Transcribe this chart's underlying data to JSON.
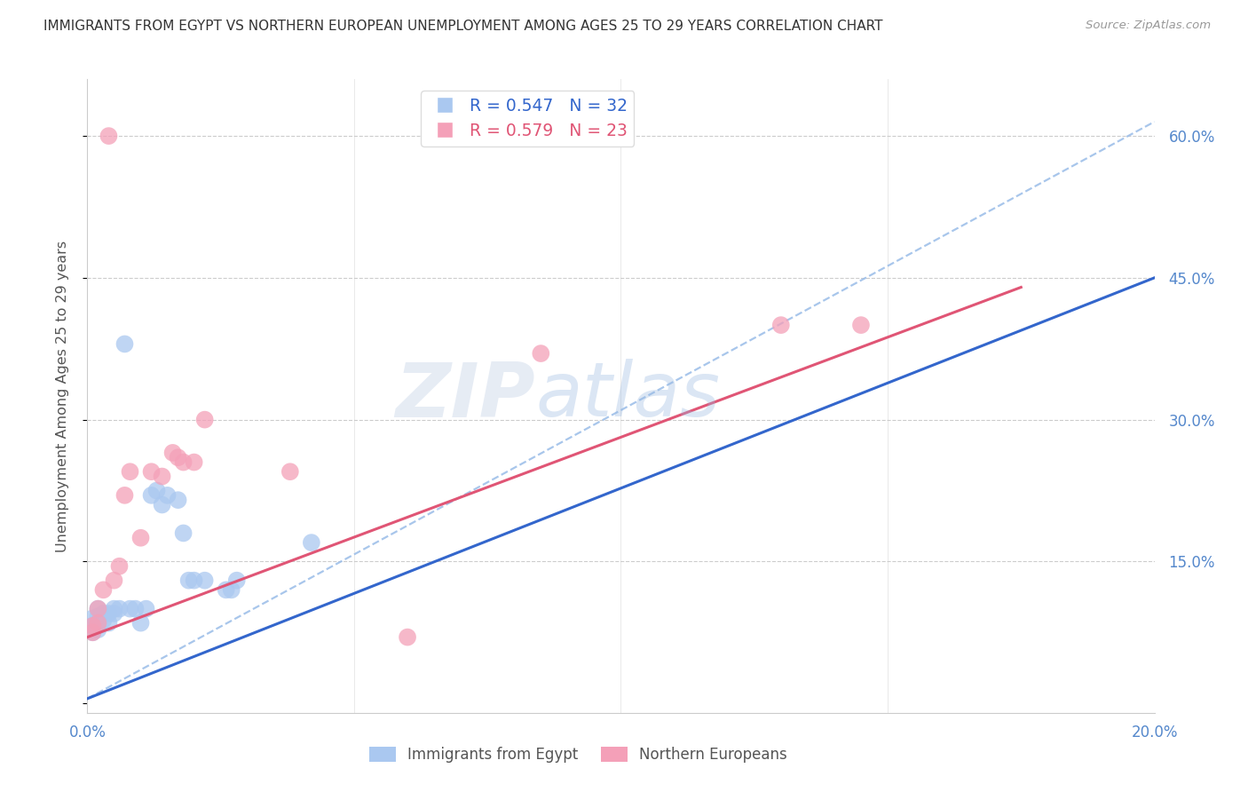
{
  "title": "IMMIGRANTS FROM EGYPT VS NORTHERN EUROPEAN UNEMPLOYMENT AMONG AGES 25 TO 29 YEARS CORRELATION CHART",
  "source": "Source: ZipAtlas.com",
  "ylabel": "Unemployment Among Ages 25 to 29 years",
  "xlim": [
    0.0,
    0.2
  ],
  "ylim": [
    -0.01,
    0.66
  ],
  "yticks_right": [
    0.0,
    0.15,
    0.3,
    0.45,
    0.6
  ],
  "ytick_labels_right": [
    "",
    "15.0%",
    "30.0%",
    "45.0%",
    "60.0%"
  ],
  "xticks": [
    0.0,
    0.025,
    0.05,
    0.075,
    0.1,
    0.125,
    0.15,
    0.175,
    0.2
  ],
  "xtick_labels": [
    "0.0%",
    "",
    "",
    "",
    "",
    "",
    "",
    "",
    "20.0%"
  ],
  "legend1_label": "R = 0.547   N = 32",
  "legend2_label": "R = 0.579   N = 23",
  "legend_bottom_label1": "Immigrants from Egypt",
  "legend_bottom_label2": "Northern Europeans",
  "blue_scatter_color": "#aac8f0",
  "pink_scatter_color": "#f4a0b8",
  "blue_line_color": "#3366cc",
  "pink_line_color": "#e05575",
  "dashed_line_color": "#99bce8",
  "tick_color": "#5588cc",
  "scatter_blue_x": [
    0.001,
    0.001,
    0.001,
    0.002,
    0.002,
    0.002,
    0.002,
    0.003,
    0.003,
    0.004,
    0.004,
    0.005,
    0.005,
    0.006,
    0.007,
    0.008,
    0.009,
    0.01,
    0.011,
    0.012,
    0.013,
    0.014,
    0.015,
    0.017,
    0.018,
    0.019,
    0.02,
    0.022,
    0.026,
    0.027,
    0.028,
    0.042
  ],
  "scatter_blue_y": [
    0.075,
    0.082,
    0.09,
    0.078,
    0.085,
    0.092,
    0.1,
    0.088,
    0.095,
    0.085,
    0.095,
    0.095,
    0.1,
    0.1,
    0.38,
    0.1,
    0.1,
    0.085,
    0.1,
    0.22,
    0.225,
    0.21,
    0.22,
    0.215,
    0.18,
    0.13,
    0.13,
    0.13,
    0.12,
    0.12,
    0.13,
    0.17
  ],
  "scatter_pink_x": [
    0.001,
    0.001,
    0.002,
    0.002,
    0.003,
    0.004,
    0.005,
    0.006,
    0.007,
    0.008,
    0.01,
    0.012,
    0.014,
    0.016,
    0.017,
    0.018,
    0.02,
    0.022,
    0.038,
    0.06,
    0.085,
    0.13,
    0.145
  ],
  "scatter_pink_y": [
    0.075,
    0.082,
    0.085,
    0.1,
    0.12,
    0.6,
    0.13,
    0.145,
    0.22,
    0.245,
    0.175,
    0.245,
    0.24,
    0.265,
    0.26,
    0.255,
    0.255,
    0.3,
    0.245,
    0.07,
    0.37,
    0.4,
    0.4
  ],
  "blue_trend_x0": 0.0,
  "blue_trend_x1": 0.2,
  "blue_trend_y0": 0.005,
  "blue_trend_y1": 0.45,
  "pink_trend_x0": 0.0,
  "pink_trend_x1": 0.175,
  "pink_trend_y0": 0.07,
  "pink_trend_y1": 0.44,
  "dashed_trend_x0": 0.0,
  "dashed_trend_x1": 0.2,
  "dashed_trend_y0": 0.005,
  "dashed_trend_y1": 0.615,
  "watermark_line1": "ZIP",
  "watermark_line2": "atlas"
}
